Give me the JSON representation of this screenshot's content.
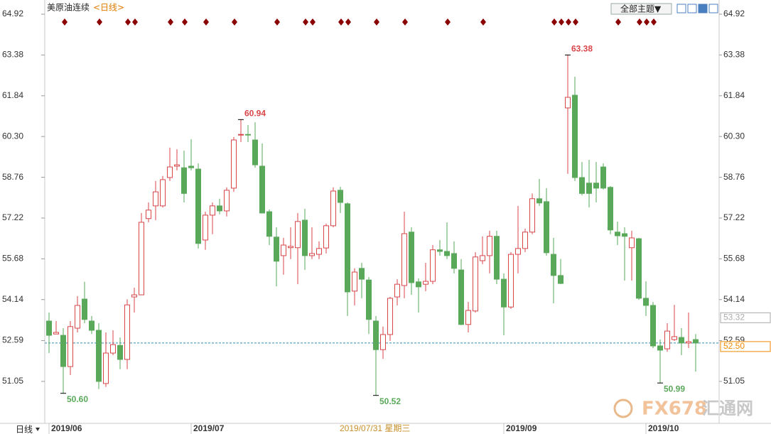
{
  "chart_data": {
    "type": "candlestick",
    "title": "美原油连续",
    "period": "<日线>",
    "theme_button": "全部主题▼",
    "period_selector": "日线",
    "cursor_label": "2019/07/31 星期三",
    "watermark": [
      "FX678",
      "汇通网"
    ],
    "up_color": "#d9464a",
    "down_color": "#5aa95a",
    "ylim": [
      49.68,
      64.92
    ],
    "yticks": [
      64.92,
      63.38,
      61.84,
      {
        "value": 60.3,
        "label": "60.30"
      },
      58.76,
      57.22,
      55.68,
      54.14,
      52.59,
      51.05
    ],
    "annotations": [
      {
        "value": 50.6,
        "label": "50.60"
      },
      {
        "value": 60.94,
        "label": "60.94"
      },
      {
        "value": 50.52,
        "label": "50.52"
      },
      {
        "value": 63.38,
        "label": "63.38"
      },
      {
        "value": 50.99,
        "label": "50.99"
      }
    ],
    "price_markers": [
      {
        "value": 53.32,
        "label": "53.32",
        "color": "#aaaaaa"
      },
      {
        "value": 52.5,
        "label": "52.50",
        "color": "#f08a00"
      }
    ],
    "categories": [
      "2019/06",
      null,
      null,
      null,
      null,
      null,
      null,
      null,
      null,
      null,
      null,
      null,
      null,
      null,
      null,
      null,
      null,
      null,
      null,
      null,
      "2019/07",
      null,
      null,
      null,
      null,
      null,
      null,
      null,
      null,
      null,
      null,
      null,
      null,
      null,
      null,
      null,
      null,
      null,
      null,
      null,
      null,
      null,
      null,
      null,
      null,
      null,
      null,
      null,
      null,
      null,
      null,
      null,
      null,
      null,
      null,
      null,
      null,
      null,
      null,
      null,
      null,
      null,
      null,
      null,
      "2019/09",
      null,
      null,
      null,
      null,
      null,
      null,
      null,
      null,
      null,
      null,
      null,
      null,
      null,
      null,
      null,
      null,
      null,
      null,
      null,
      "2019/10",
      null,
      null,
      null,
      null,
      null,
      null,
      null
    ],
    "ohlc": [
      [
        53.33,
        53.65,
        52.12,
        52.79
      ],
      [
        52.84,
        53.33,
        52.84,
        52.9
      ],
      [
        52.79,
        53.06,
        50.6,
        51.61
      ],
      [
        51.61,
        53.33,
        51.29,
        53.12
      ],
      [
        53.06,
        54.27,
        52.9,
        53.92
      ],
      [
        54.16,
        54.81,
        53.25,
        53.39
      ],
      [
        53.33,
        53.52,
        52.84,
        52.98
      ],
      [
        52.98,
        53.25,
        50.76,
        51.05
      ],
      [
        50.97,
        52.9,
        50.84,
        52.12
      ],
      [
        52.12,
        52.98,
        52.04,
        52.44
      ],
      [
        52.41,
        52.71,
        51.51,
        51.88
      ],
      [
        51.88,
        54.15,
        51.51,
        53.94
      ],
      [
        54.24,
        54.59,
        53.65,
        54.32
      ],
      [
        54.32,
        57.41,
        54.32,
        57.06
      ],
      [
        57.2,
        57.81,
        57.06,
        57.52
      ],
      [
        57.68,
        58.62,
        57.14,
        58.21
      ],
      [
        57.68,
        58.81,
        57.62,
        58.67
      ],
      [
        58.75,
        59.88,
        58.62,
        59.15
      ],
      [
        59.18,
        59.82,
        59.02,
        59.23
      ],
      [
        59.12,
        59.77,
        57.81,
        58.15
      ],
      [
        59.18,
        60.2,
        59.02,
        59.12
      ],
      [
        59.07,
        59.29,
        56.07,
        56.26
      ],
      [
        56.39,
        57.46,
        56.02,
        57.33
      ],
      [
        57.33,
        57.81,
        56.61,
        57.68
      ],
      [
        57.68,
        57.95,
        57.36,
        57.49
      ],
      [
        57.49,
        58.38,
        57.28,
        58.27
      ],
      [
        58.35,
        60.28,
        58.21,
        60.17
      ],
      [
        60.36,
        60.94,
        60.09,
        60.38
      ],
      [
        60.38,
        60.73,
        60.09,
        60.36
      ],
      [
        60.17,
        60.84,
        59.12,
        59.23
      ],
      [
        59.18,
        60.04,
        57.41,
        57.41
      ],
      [
        57.46,
        57.54,
        56.2,
        56.53
      ],
      [
        56.5,
        56.87,
        54.64,
        55.59
      ],
      [
        55.8,
        56.47,
        55.08,
        56.2
      ],
      [
        56.1,
        56.87,
        55.67,
        56.15
      ],
      [
        56.1,
        57.41,
        54.72,
        57.09
      ],
      [
        57.14,
        57.57,
        55.26,
        55.8
      ],
      [
        55.8,
        56.87,
        55.67,
        55.88
      ],
      [
        55.85,
        56.34,
        55.67,
        56.07
      ],
      [
        56.09,
        57.01,
        55.88,
        56.93
      ],
      [
        56.93,
        58.38,
        56.87,
        58.24
      ],
      [
        58.27,
        58.4,
        57.41,
        57.81
      ],
      [
        57.76,
        57.81,
        53.52,
        54.43
      ],
      [
        54.46,
        55.32,
        53.92,
        55.18
      ],
      [
        55.32,
        55.53,
        54.19,
        54.91
      ],
      [
        54.88,
        54.99,
        52.84,
        53.39
      ],
      [
        53.33,
        53.52,
        50.52,
        52.25
      ],
      [
        52.25,
        53.12,
        51.9,
        52.82
      ],
      [
        52.82,
        54.24,
        52.58,
        54.19
      ],
      [
        54.24,
        54.91,
        53.92,
        54.72
      ],
      [
        54.67,
        57.46,
        54.19,
        56.63
      ],
      [
        56.69,
        56.87,
        54.32,
        54.78
      ],
      [
        54.81,
        54.94,
        53.65,
        54.62
      ],
      [
        54.72,
        55.53,
        54.46,
        54.83
      ],
      [
        54.83,
        56.2,
        54.72,
        56.02
      ],
      [
        56.02,
        56.39,
        55.8,
        55.96
      ],
      [
        55.96,
        57.06,
        55.67,
        55.8
      ],
      [
        55.88,
        56.34,
        55.13,
        55.32
      ],
      [
        55.26,
        55.67,
        53.17,
        53.2
      ],
      [
        53.2,
        54.05,
        52.9,
        53.73
      ],
      [
        53.71,
        55.93,
        53.65,
        55.75
      ],
      [
        55.61,
        56.53,
        55.48,
        55.8
      ],
      [
        55.8,
        56.74,
        55.13,
        56.53
      ],
      [
        56.53,
        56.74,
        54.72,
        54.91
      ],
      [
        54.91,
        55.13,
        52.79,
        53.86
      ],
      [
        53.86,
        55.93,
        53.79,
        55.85
      ],
      [
        55.85,
        57.68,
        55.13,
        56.07
      ],
      [
        56.07,
        56.82,
        55.93,
        56.69
      ],
      [
        56.69,
        58.15,
        56.61,
        57.95
      ],
      [
        57.95,
        58.7,
        57.68,
        57.79
      ],
      [
        57.84,
        58.35,
        55.8,
        55.91
      ],
      [
        55.85,
        56.47,
        54.0,
        55.05
      ],
      [
        55.05,
        55.67,
        54.72,
        54.75
      ],
      [
        61.38,
        63.38,
        58.89,
        61.78
      ],
      [
        61.86,
        62.56,
        58.62,
        58.75
      ],
      [
        58.75,
        59.34,
        58.07,
        58.15
      ],
      [
        58.54,
        59.42,
        57.62,
        58.15
      ],
      [
        58.54,
        59.34,
        57.81,
        58.35
      ],
      [
        59.15,
        59.29,
        58.3,
        58.35
      ],
      [
        58.38,
        58.43,
        56.61,
        56.77
      ],
      [
        56.69,
        57.09,
        56.2,
        56.55
      ],
      [
        56.63,
        56.87,
        54.86,
        56.53
      ],
      [
        56.1,
        56.74,
        54.86,
        56.47
      ],
      [
        56.44,
        56.47,
        54.13,
        54.19
      ],
      [
        54.19,
        54.83,
        53.52,
        53.92
      ],
      [
        53.92,
        54.05,
        52.31,
        52.39
      ],
      [
        52.39,
        52.63,
        50.99,
        52.23
      ],
      [
        52.28,
        53.25,
        52.17,
        52.95
      ],
      [
        52.63,
        53.94,
        52.58,
        52.74
      ],
      [
        52.71,
        53.06,
        52.04,
        52.5
      ],
      [
        52.5,
        53.65,
        52.31,
        52.55
      ],
      [
        52.63,
        52.84,
        51.42,
        52.5
      ]
    ]
  }
}
